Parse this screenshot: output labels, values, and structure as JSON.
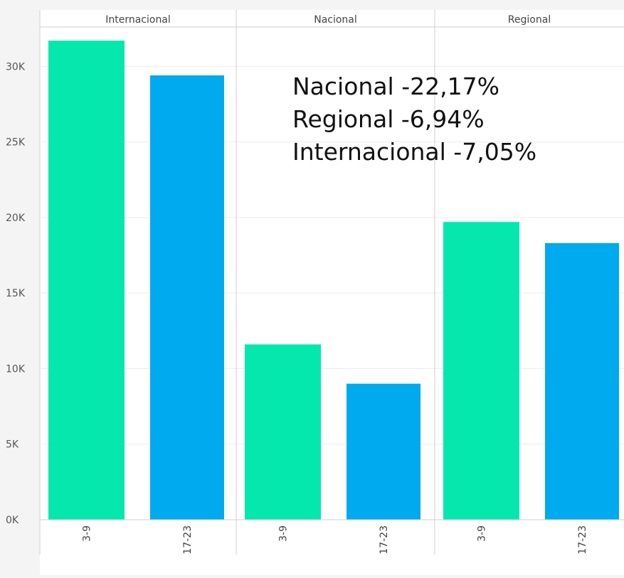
{
  "chart_data": {
    "type": "bar",
    "panels": [
      {
        "name": "Internacional",
        "categories": [
          "3-9",
          "17-23"
        ],
        "values": [
          31700,
          29400
        ]
      },
      {
        "name": "Nacional",
        "categories": [
          "3-9",
          "17-23"
        ],
        "values": [
          11600,
          9000
        ]
      },
      {
        "name": "Regional",
        "categories": [
          "3-9",
          "17-23"
        ],
        "values": [
          19700,
          18300
        ]
      }
    ],
    "y_ticks": [
      "0K",
      "5K",
      "10K",
      "15K",
      "20K",
      "25K",
      "30K"
    ],
    "y_tick_values": [
      0,
      5000,
      10000,
      15000,
      20000,
      25000,
      30000
    ],
    "ylim": [
      0,
      32600
    ],
    "grid": true,
    "colors": {
      "bar_1": "#05e8ad",
      "bar_2": "#00aaee"
    },
    "annotations": [
      "Nacional -22,17%",
      "Regional -6,94%",
      "Internacional -7,05%"
    ]
  }
}
